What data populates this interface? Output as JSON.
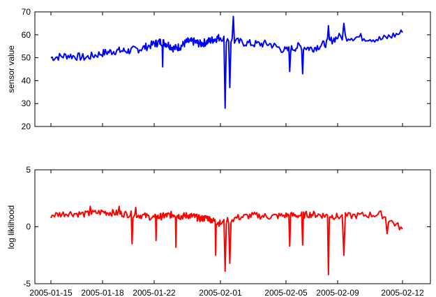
{
  "chart_data": [
    {
      "type": "line",
      "ylabel": "sensor value",
      "xlabel": "",
      "ylim": [
        20,
        70
      ],
      "yticks": [
        20,
        30,
        40,
        50,
        60,
        70
      ],
      "x_ticks_shown": false,
      "grid": false,
      "series": [
        {
          "color": "#0000ff",
          "x": [
            "2005-01-15",
            "2005-01-16",
            "2005-01-17",
            "2005-01-18",
            "2005-01-19",
            "2005-01-20",
            "2005-01-21",
            "2005-01-22",
            "2005-01-23",
            "2005-01-24",
            "2005-01-25",
            "2005-01-26",
            "2005-01-27",
            "2005-01-28",
            "2005-01-29",
            "2005-01-30",
            "2005-01-31",
            "2005-02-01",
            "2005-02-02",
            "2005-02-03",
            "2005-02-04",
            "2005-02-05",
            "2005-02-06",
            "2005-02-07",
            "2005-02-08",
            "2005-02-09",
            "2005-02-10",
            "2005-02-11",
            "2005-02-12"
          ],
          "values": [
            50,
            51,
            50,
            52,
            53,
            53,
            54,
            56,
            57,
            56,
            54,
            55,
            57,
            57,
            56,
            57,
            58,
            59,
            57,
            56,
            56,
            53,
            55,
            54,
            56,
            59,
            59,
            58,
            61
          ],
          "dips": [
            {
              "x": "2005-02-01",
              "value": 28
            },
            {
              "x": "2005-02-01",
              "value": 37
            },
            {
              "x": "2005-02-05",
              "value": 44
            },
            {
              "x": "2005-02-06",
              "value": 43
            },
            {
              "x": "2005-01-23",
              "value": 46
            }
          ],
          "peaks": [
            {
              "x": "2005-02-01",
              "value": 68
            },
            {
              "x": "2005-02-09",
              "value": 65
            },
            {
              "x": "2005-02-08",
              "value": 64
            }
          ]
        }
      ]
    },
    {
      "type": "line",
      "ylabel": "log liklihood",
      "xlabel": "",
      "ylim": [
        -5,
        5
      ],
      "yticks": [
        -5,
        0,
        5
      ],
      "xticks": [
        "2005-01-15",
        "2005-01-18",
        "2005-01-22",
        "2005-02-01",
        "2005-02-05",
        "2005-02-09",
        "2005-02-12"
      ],
      "grid": false,
      "series": [
        {
          "color": "#ff0000",
          "x": [
            "2005-01-15",
            "2005-01-16",
            "2005-01-17",
            "2005-01-18",
            "2005-01-19",
            "2005-01-20",
            "2005-01-21",
            "2005-01-22",
            "2005-01-23",
            "2005-01-24",
            "2005-01-25",
            "2005-01-26",
            "2005-01-27",
            "2005-01-28",
            "2005-01-29",
            "2005-01-30",
            "2005-01-31",
            "2005-02-01",
            "2005-02-02",
            "2005-02-03",
            "2005-02-04",
            "2005-02-05",
            "2005-02-06",
            "2005-02-07",
            "2005-02-08",
            "2005-02-09",
            "2005-02-10",
            "2005-02-11",
            "2005-02-12"
          ],
          "values": [
            1.0,
            1.2,
            1.1,
            1.3,
            1.2,
            1.1,
            1.0,
            0.8,
            0.9,
            1.0,
            1.1,
            0.9,
            1.0,
            0.9,
            0.7,
            0.8,
            0.5,
            0.3,
            0.8,
            1.0,
            0.9,
            1.0,
            1.0,
            1.1,
            1.0,
            0.9,
            1.0,
            1.1,
            -0.2
          ],
          "dips": [
            {
              "x": "2005-01-20",
              "value": -1.5
            },
            {
              "x": "2005-01-22",
              "value": -1.2
            },
            {
              "x": "2005-01-25",
              "value": -1.8
            },
            {
              "x": "2005-01-31",
              "value": -2.5
            },
            {
              "x": "2005-02-01",
              "value": -3.9
            },
            {
              "x": "2005-02-01",
              "value": -3.2
            },
            {
              "x": "2005-02-05",
              "value": -1.7
            },
            {
              "x": "2005-02-06",
              "value": -1.6
            },
            {
              "x": "2005-02-08",
              "value": -4.2
            },
            {
              "x": "2005-02-09",
              "value": -2.5
            },
            {
              "x": "2005-02-11",
              "value": -0.6
            }
          ],
          "peaks": [
            {
              "x": "2005-01-17",
              "value": 1.8
            },
            {
              "x": "2005-01-19",
              "value": 1.8
            },
            {
              "x": "2005-01-20",
              "value": 1.7
            }
          ]
        }
      ]
    }
  ]
}
